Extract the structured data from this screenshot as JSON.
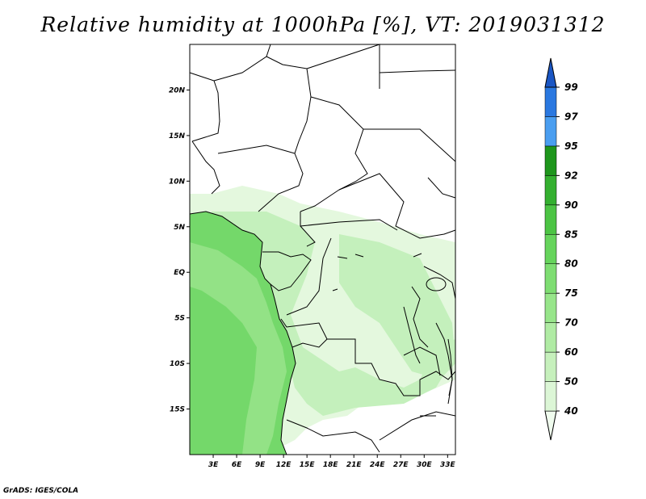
{
  "title": "Relative humidity at 1000hPa [%], VT: 2019031312",
  "credit": "GrADS: IGES/COLA",
  "map": {
    "lon_range": [
      0,
      34
    ],
    "lat_range": [
      -20,
      25
    ],
    "lat_ticks": [
      {
        "value": 20,
        "label": "20N"
      },
      {
        "value": 15,
        "label": "15N"
      },
      {
        "value": 10,
        "label": "10N"
      },
      {
        "value": 5,
        "label": "5N"
      },
      {
        "value": 0,
        "label": "EQ"
      },
      {
        "value": -5,
        "label": "5S"
      },
      {
        "value": -10,
        "label": "10S"
      },
      {
        "value": -15,
        "label": "15S"
      }
    ],
    "lon_ticks": [
      {
        "value": 3,
        "label": "3E"
      },
      {
        "value": 6,
        "label": "6E"
      },
      {
        "value": 9,
        "label": "9E"
      },
      {
        "value": 12,
        "label": "12E"
      },
      {
        "value": 15,
        "label": "15E"
      },
      {
        "value": 18,
        "label": "18E"
      },
      {
        "value": 21,
        "label": "21E"
      },
      {
        "value": 24,
        "label": "24E"
      },
      {
        "value": 27,
        "label": "27E"
      },
      {
        "value": 30,
        "label": "30E"
      },
      {
        "value": 33,
        "label": "33E"
      }
    ]
  },
  "colorbar": {
    "levels": [
      "40",
      "50",
      "60",
      "70",
      "75",
      "80",
      "85",
      "90",
      "92",
      "95",
      "97",
      "99"
    ],
    "colors": [
      "#f0fcee",
      "#dcf6d6",
      "#c6f0bc",
      "#b0eba4",
      "#97e58a",
      "#7edd72",
      "#66d45c",
      "#4cc444",
      "#34b030",
      "#1e961c",
      "#4a9ef0",
      "#2a78e0",
      "#1a56c4"
    ]
  },
  "colors": {
    "ocean": "#74d86a",
    "land_wet": "#c4f0bc",
    "land_moist": "#e4f8de",
    "land_dry": "#ffffff",
    "coast_band": "#93e286",
    "border": "#000000"
  }
}
